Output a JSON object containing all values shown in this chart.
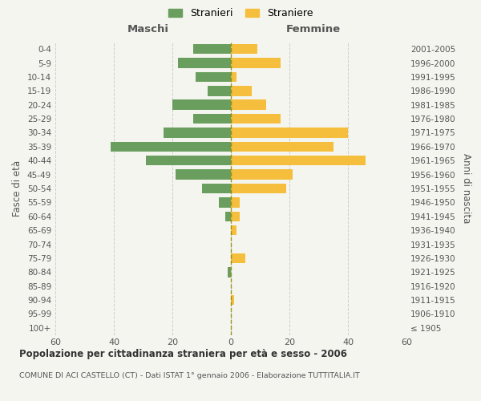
{
  "age_groups": [
    "0-4",
    "5-9",
    "10-14",
    "15-19",
    "20-24",
    "25-29",
    "30-34",
    "35-39",
    "40-44",
    "45-49",
    "50-54",
    "55-59",
    "60-64",
    "65-69",
    "70-74",
    "75-79",
    "80-84",
    "85-89",
    "90-94",
    "95-99",
    "100+"
  ],
  "birth_years": [
    "2001-2005",
    "1996-2000",
    "1991-1995",
    "1986-1990",
    "1981-1985",
    "1976-1980",
    "1971-1975",
    "1966-1970",
    "1961-1965",
    "1956-1960",
    "1951-1955",
    "1946-1950",
    "1941-1945",
    "1936-1940",
    "1931-1935",
    "1926-1930",
    "1921-1925",
    "1916-1920",
    "1911-1915",
    "1906-1910",
    "≤ 1905"
  ],
  "maschi": [
    13,
    18,
    12,
    8,
    20,
    13,
    23,
    41,
    29,
    19,
    10,
    4,
    2,
    0,
    0,
    0,
    1,
    0,
    0,
    0,
    0
  ],
  "femmine": [
    9,
    17,
    2,
    7,
    12,
    17,
    40,
    35,
    46,
    21,
    19,
    3,
    3,
    2,
    0,
    5,
    0,
    0,
    1,
    0,
    0
  ],
  "color_maschi": "#6a9e5e",
  "color_femmine": "#f5be3c",
  "color_center_line": "#888800",
  "xlim": 60,
  "title": "Popolazione per cittadinanza straniera per età e sesso - 2006",
  "subtitle": "COMUNE DI ACI CASTELLO (CT) - Dati ISTAT 1° gennaio 2006 - Elaborazione TUTTITALIA.IT",
  "ylabel_left": "Fasce di età",
  "ylabel_right": "Anni di nascita",
  "label_maschi": "Maschi",
  "label_femmine": "Femmine",
  "legend_stranieri": "Stranieri",
  "legend_straniere": "Straniere",
  "bg_color": "#f5f5f0"
}
